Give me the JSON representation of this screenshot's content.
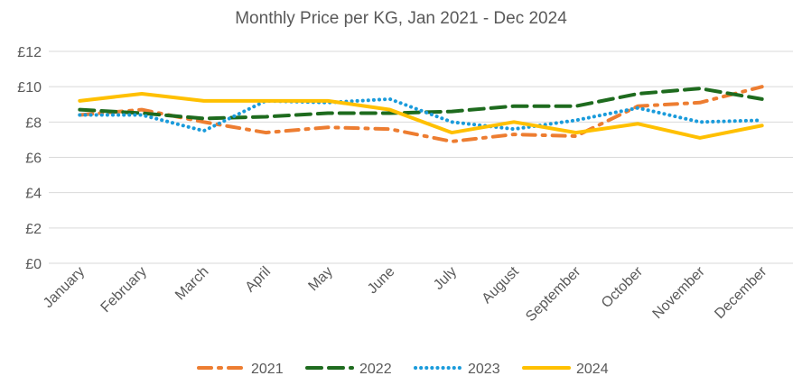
{
  "chart_data": {
    "type": "line",
    "title": "Monthly Price per KG, Jan 2021 - Dec 2024",
    "xlabel": "",
    "ylabel": "",
    "categories": [
      "January",
      "February",
      "March",
      "April",
      "May",
      "June",
      "July",
      "August",
      "September",
      "October",
      "November",
      "December"
    ],
    "ylim": [
      0,
      12
    ],
    "yticks": [
      0,
      2,
      4,
      6,
      8,
      10,
      12
    ],
    "ytick_labels": [
      "£0",
      "£2",
      "£4",
      "£6",
      "£8",
      "£10",
      "£12"
    ],
    "grid": true,
    "legend_position": "bottom",
    "series": [
      {
        "name": "2021",
        "color": "#ED7D31",
        "style": "dash-dot",
        "values": [
          8.4,
          8.7,
          8.0,
          7.4,
          7.7,
          7.6,
          6.9,
          7.3,
          7.2,
          8.9,
          9.1,
          10.0
        ]
      },
      {
        "name": "2022",
        "color": "#1E6B1E",
        "style": "long-dash",
        "values": [
          8.7,
          8.5,
          8.2,
          8.3,
          8.5,
          8.5,
          8.6,
          8.9,
          8.9,
          9.6,
          9.9,
          9.3
        ]
      },
      {
        "name": "2023",
        "color": "#1A9BDB",
        "style": "dotted",
        "values": [
          8.4,
          8.4,
          7.5,
          9.2,
          9.1,
          9.3,
          8.0,
          7.6,
          8.1,
          8.8,
          8.0,
          8.1
        ]
      },
      {
        "name": "2024",
        "color": "#FFC000",
        "style": "solid",
        "values": [
          9.2,
          9.6,
          9.2,
          9.2,
          9.2,
          8.7,
          7.4,
          8.0,
          7.4,
          7.9,
          7.1,
          7.8
        ]
      }
    ]
  }
}
